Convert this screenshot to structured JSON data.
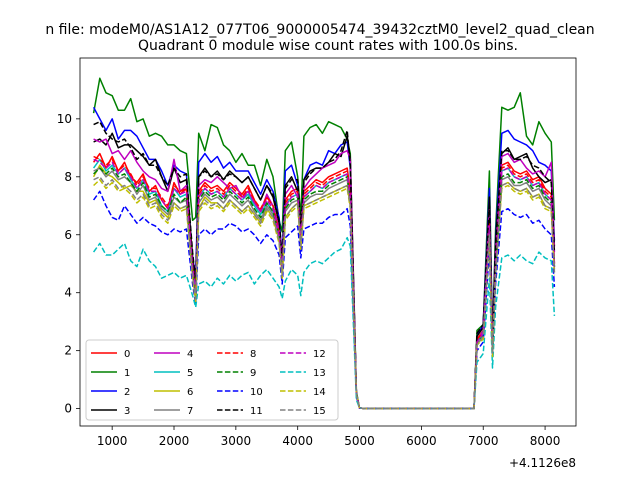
{
  "suptitle": "n file: modeM0/AS1A12_077T06_9000005474_39432cztM0_level2_quad_clean",
  "chart_data": {
    "type": "line",
    "title": "Quadrant 0 module wise count rates with 100.0s bins.",
    "xlabel": "",
    "ylabel": "",
    "offset_text": "+4.1126e8",
    "xlim": [
      480,
      8500
    ],
    "ylim": [
      -0.6,
      12.1
    ],
    "xticks": [
      1000,
      2000,
      3000,
      4000,
      5000,
      6000,
      7000,
      8000
    ],
    "yticks": [
      0,
      2,
      4,
      6,
      8,
      10
    ],
    "legend_position": "lower-left",
    "legend_columns": 4,
    "x": [
      700,
      800,
      900,
      1000,
      1100,
      1200,
      1300,
      1400,
      1500,
      1600,
      1700,
      1800,
      1900,
      2000,
      2100,
      2200,
      2300,
      2350,
      2400,
      2500,
      2600,
      2700,
      2800,
      2900,
      3000,
      3100,
      3200,
      3300,
      3400,
      3500,
      3600,
      3700,
      3750,
      3800,
      3900,
      4000,
      4050,
      4100,
      4200,
      4300,
      4400,
      4500,
      4600,
      4700,
      4800,
      4850,
      4950,
      5000,
      5100,
      6850,
      6900,
      7000,
      7100,
      7150,
      7200,
      7300,
      7400,
      7500,
      7600,
      7700,
      7800,
      7900,
      8000,
      8100,
      8150
    ],
    "series": [
      {
        "name": "0",
        "color": "#ff0000",
        "dash": false,
        "values": [
          8.5,
          8.8,
          8.3,
          8.7,
          8.2,
          8.5,
          8.0,
          7.8,
          8.1,
          7.5,
          7.7,
          7.2,
          6.9,
          7.8,
          7.4,
          7.6,
          5.0,
          4.0,
          7.5,
          7.8,
          7.6,
          7.7,
          7.5,
          7.8,
          7.6,
          7.4,
          7.7,
          7.2,
          6.8,
          7.3,
          7.0,
          6.2,
          5.0,
          7.2,
          7.5,
          7.6,
          6.0,
          7.5,
          7.7,
          7.9,
          7.8,
          8.0,
          8.1,
          8.2,
          8.3,
          7.5,
          0.5,
          0.02,
          0.0,
          0.0,
          2.4,
          2.7,
          6.5,
          2.0,
          5.0,
          8.4,
          8.5,
          8.2,
          8.1,
          8.2,
          7.9,
          8.0,
          7.6,
          7.4,
          5.0
        ]
      },
      {
        "name": "1",
        "color": "#008000",
        "dash": false,
        "values": [
          10.2,
          11.4,
          10.9,
          10.8,
          10.3,
          10.3,
          10.7,
          9.9,
          10.0,
          9.4,
          9.5,
          9.4,
          9.1,
          9.1,
          8.9,
          8.8,
          6.5,
          6.6,
          9.5,
          8.9,
          9.8,
          9.7,
          9.1,
          8.9,
          8.5,
          8.8,
          8.4,
          8.4,
          7.7,
          8.6,
          8.0,
          6.5,
          6.1,
          8.9,
          9.2,
          8.0,
          6.6,
          9.4,
          9.7,
          9.8,
          9.5,
          9.9,
          9.8,
          9.7,
          9.3,
          8.8,
          0.6,
          0.02,
          0.0,
          0.0,
          2.7,
          2.9,
          8.2,
          2.4,
          6.2,
          10.4,
          10.3,
          10.4,
          10.9,
          9.4,
          9.1,
          9.9,
          9.5,
          9.2,
          6.5
        ]
      },
      {
        "name": "2",
        "color": "#0000ff",
        "dash": false,
        "values": [
          10.4,
          10.0,
          9.6,
          10.0,
          9.3,
          9.6,
          9.6,
          9.4,
          9.0,
          8.6,
          8.6,
          8.2,
          7.7,
          8.4,
          8.2,
          8.1,
          5.2,
          4.6,
          8.5,
          8.8,
          8.5,
          8.7,
          8.3,
          8.5,
          8.2,
          8.2,
          8.2,
          7.8,
          7.4,
          7.9,
          7.5,
          6.6,
          5.2,
          8.2,
          8.4,
          7.7,
          6.1,
          7.9,
          8.4,
          8.5,
          8.4,
          8.9,
          8.8,
          9.1,
          9.2,
          8.3,
          0.5,
          0.02,
          0.0,
          0.0,
          2.5,
          2.9,
          7.6,
          2.4,
          5.9,
          9.5,
          9.6,
          9.3,
          9.2,
          9.1,
          8.9,
          8.5,
          8.4,
          8.2,
          5.8
        ]
      },
      {
        "name": "3",
        "color": "#000000",
        "dash": false,
        "values": [
          9.2,
          9.3,
          9.1,
          9.5,
          9.0,
          9.1,
          9.1,
          8.9,
          8.7,
          8.4,
          8.6,
          8.0,
          7.5,
          8.3,
          7.8,
          7.9,
          5.2,
          4.2,
          8.0,
          8.3,
          8.0,
          8.2,
          7.9,
          8.2,
          8.0,
          7.8,
          8.0,
          7.6,
          7.2,
          7.7,
          7.3,
          6.4,
          5.0,
          7.7,
          8.0,
          7.5,
          6.0,
          7.9,
          8.2,
          8.3,
          8.3,
          8.5,
          8.8,
          8.7,
          9.4,
          8.6,
          0.5,
          0.02,
          0.0,
          0.0,
          2.5,
          2.8,
          7.3,
          2.3,
          5.8,
          8.8,
          9.0,
          8.6,
          8.7,
          8.8,
          8.3,
          8.0,
          7.8,
          7.9,
          5.6
        ]
      },
      {
        "name": "4",
        "color": "#bf00bf",
        "dash": false,
        "values": [
          9.3,
          9.2,
          9.3,
          8.8,
          8.9,
          8.6,
          8.9,
          8.5,
          8.2,
          8.0,
          7.9,
          7.6,
          7.5,
          8.6,
          7.5,
          7.7,
          4.6,
          4.0,
          7.7,
          7.9,
          7.8,
          8.0,
          7.8,
          7.6,
          7.7,
          7.3,
          7.5,
          7.1,
          6.8,
          7.4,
          7.0,
          6.2,
          5.2,
          7.4,
          7.7,
          7.3,
          6.1,
          7.6,
          7.9,
          8.1,
          8.3,
          8.4,
          8.5,
          8.8,
          8.9,
          8.6,
          0.5,
          0.02,
          0.0,
          0.0,
          2.3,
          2.7,
          6.9,
          2.1,
          5.4,
          8.7,
          8.8,
          8.5,
          8.6,
          8.3,
          8.1,
          8.2,
          8.0,
          8.5,
          5.4
        ]
      },
      {
        "name": "5",
        "color": "#00bfbf",
        "dash": false,
        "values": [
          8.3,
          8.6,
          8.2,
          8.4,
          8.1,
          8.3,
          7.9,
          7.6,
          7.9,
          7.4,
          7.5,
          7.0,
          6.8,
          7.6,
          7.3,
          7.4,
          4.8,
          3.9,
          7.3,
          7.6,
          7.4,
          7.5,
          7.3,
          7.6,
          7.4,
          7.2,
          7.4,
          7.0,
          6.7,
          7.1,
          6.8,
          6.0,
          4.9,
          7.0,
          7.3,
          7.4,
          5.8,
          7.3,
          7.5,
          7.7,
          7.6,
          7.8,
          7.9,
          8.0,
          8.1,
          7.3,
          0.5,
          0.02,
          0.0,
          0.0,
          2.3,
          2.6,
          6.3,
          2.0,
          4.9,
          8.2,
          8.3,
          8.0,
          7.9,
          8.0,
          7.7,
          7.8,
          7.4,
          7.2,
          4.9
        ]
      },
      {
        "name": "6",
        "color": "#bfbf00",
        "dash": false,
        "values": [
          8.0,
          8.4,
          8.1,
          8.0,
          7.8,
          7.6,
          7.7,
          7.5,
          7.5,
          7.1,
          7.2,
          6.8,
          6.6,
          7.1,
          6.9,
          7.0,
          4.6,
          3.7,
          6.9,
          7.3,
          7.1,
          7.1,
          6.9,
          7.2,
          7.0,
          6.8,
          7.0,
          6.7,
          6.4,
          6.9,
          6.6,
          5.8,
          4.6,
          6.6,
          6.9,
          7.1,
          5.6,
          7.0,
          7.1,
          7.2,
          7.3,
          7.4,
          7.5,
          7.6,
          7.7,
          7.0,
          0.5,
          0.02,
          0.0,
          0.0,
          2.2,
          2.5,
          6.0,
          1.9,
          4.7,
          7.7,
          7.8,
          7.6,
          7.5,
          7.6,
          7.3,
          7.4,
          7.0,
          6.9,
          4.7
        ]
      },
      {
        "name": "7",
        "color": "#808080",
        "dash": false,
        "values": [
          8.2,
          8.3,
          8.0,
          8.2,
          7.9,
          8.0,
          7.8,
          7.4,
          7.7,
          7.2,
          7.3,
          6.9,
          6.7,
          7.3,
          7.1,
          7.2,
          4.7,
          3.8,
          7.1,
          7.4,
          7.2,
          7.3,
          7.1,
          7.4,
          7.2,
          7.0,
          7.2,
          6.8,
          6.5,
          7.0,
          6.7,
          5.9,
          4.7,
          6.8,
          7.1,
          7.2,
          5.7,
          7.1,
          7.3,
          7.4,
          7.4,
          7.6,
          7.7,
          7.8,
          7.9,
          7.1,
          0.5,
          0.02,
          0.0,
          0.0,
          2.2,
          2.5,
          6.1,
          1.9,
          4.8,
          7.9,
          8.0,
          7.7,
          7.7,
          7.8,
          7.5,
          7.6,
          7.2,
          7.0,
          4.8
        ]
      },
      {
        "name": "8",
        "color": "#ff0000",
        "dash": true,
        "values": [
          8.7,
          8.6,
          8.4,
          8.6,
          8.2,
          8.4,
          8.1,
          7.7,
          8.0,
          7.6,
          7.6,
          7.3,
          7.0,
          7.7,
          7.5,
          7.6,
          5.0,
          4.1,
          7.4,
          7.7,
          7.5,
          7.6,
          7.4,
          7.7,
          7.5,
          7.3,
          7.6,
          7.2,
          6.9,
          7.3,
          7.0,
          6.1,
          4.9,
          7.1,
          7.4,
          7.5,
          6.0,
          7.4,
          7.6,
          7.8,
          7.7,
          7.9,
          8.0,
          8.1,
          8.2,
          7.4,
          0.5,
          0.02,
          0.0,
          0.0,
          2.4,
          2.6,
          6.4,
          2.0,
          5.0,
          8.3,
          8.4,
          8.1,
          8.0,
          8.1,
          7.8,
          7.9,
          7.5,
          7.3,
          5.0
        ]
      },
      {
        "name": "9",
        "color": "#008000",
        "dash": true,
        "values": [
          8.1,
          8.3,
          8.1,
          8.3,
          8.0,
          8.1,
          7.8,
          7.5,
          7.8,
          7.3,
          7.4,
          7.0,
          6.8,
          7.4,
          7.1,
          7.3,
          4.8,
          3.9,
          7.2,
          7.5,
          7.3,
          7.4,
          7.2,
          7.5,
          7.3,
          7.1,
          7.3,
          6.9,
          6.6,
          7.1,
          6.8,
          6.0,
          4.8,
          6.9,
          7.2,
          7.3,
          5.8,
          7.2,
          7.4,
          7.5,
          7.5,
          7.7,
          7.8,
          7.9,
          8.0,
          7.2,
          0.5,
          0.02,
          0.0,
          0.0,
          2.3,
          2.5,
          6.2,
          1.9,
          4.9,
          8.0,
          8.1,
          7.8,
          7.8,
          7.9,
          7.6,
          7.7,
          7.3,
          7.1,
          4.9
        ]
      },
      {
        "name": "10",
        "color": "#0000ff",
        "dash": true,
        "values": [
          7.2,
          7.5,
          7.0,
          6.6,
          6.5,
          7.0,
          6.7,
          6.4,
          6.6,
          6.4,
          6.3,
          6.1,
          6.0,
          6.2,
          6.1,
          6.2,
          4.3,
          3.6,
          6.0,
          6.2,
          6.0,
          6.2,
          6.2,
          6.4,
          6.3,
          6.1,
          6.2,
          6.0,
          5.7,
          6.0,
          5.8,
          5.3,
          4.3,
          5.9,
          6.1,
          6.3,
          5.2,
          6.2,
          6.3,
          6.4,
          6.4,
          6.6,
          6.7,
          6.7,
          6.9,
          6.3,
          0.4,
          0.02,
          0.0,
          0.0,
          2.0,
          2.3,
          5.5,
          1.8,
          4.3,
          6.8,
          6.9,
          6.7,
          6.6,
          6.7,
          6.4,
          6.5,
          6.2,
          6.0,
          4.2
        ]
      },
      {
        "name": "11",
        "color": "#000000",
        "dash": true,
        "values": [
          9.8,
          9.9,
          9.5,
          9.3,
          9.2,
          9.3,
          9.0,
          8.6,
          8.8,
          8.4,
          8.4,
          8.0,
          7.7,
          8.3,
          8.0,
          8.1,
          5.4,
          4.4,
          8.0,
          8.2,
          8.0,
          8.1,
          7.9,
          8.1,
          8.0,
          7.8,
          8.0,
          7.6,
          7.2,
          7.7,
          7.4,
          6.5,
          5.2,
          7.6,
          7.9,
          7.9,
          6.3,
          7.8,
          8.1,
          8.3,
          8.3,
          8.5,
          8.6,
          8.9,
          9.6,
          8.4,
          0.5,
          0.02,
          0.0,
          0.0,
          2.6,
          2.9,
          7.0,
          2.2,
          5.6,
          8.9,
          8.9,
          8.6,
          8.6,
          8.7,
          8.4,
          8.3,
          8.0,
          7.8,
          5.4
        ]
      },
      {
        "name": "12",
        "color": "#bf00bf",
        "dash": true,
        "values": [
          8.6,
          8.5,
          8.3,
          8.5,
          8.1,
          8.3,
          8.0,
          7.6,
          7.9,
          7.5,
          7.5,
          7.2,
          6.9,
          7.6,
          7.4,
          7.5,
          4.9,
          4.0,
          7.3,
          7.6,
          7.4,
          7.5,
          7.3,
          7.6,
          7.4,
          7.2,
          7.5,
          7.1,
          6.8,
          7.2,
          6.9,
          6.0,
          4.8,
          7.0,
          7.3,
          7.4,
          5.9,
          7.3,
          7.5,
          7.7,
          7.6,
          7.8,
          7.9,
          8.0,
          8.1,
          7.3,
          0.5,
          0.02,
          0.0,
          0.0,
          2.3,
          2.6,
          6.3,
          2.0,
          4.9,
          8.2,
          8.3,
          8.0,
          7.9,
          8.0,
          7.7,
          7.8,
          7.4,
          7.2,
          4.9
        ]
      },
      {
        "name": "13",
        "color": "#00bfbf",
        "dash": true,
        "values": [
          5.4,
          5.7,
          5.3,
          5.3,
          5.5,
          5.7,
          5.1,
          4.9,
          5.5,
          5.1,
          4.9,
          4.5,
          4.6,
          4.7,
          4.5,
          4.6,
          3.9,
          3.5,
          4.3,
          4.4,
          4.2,
          4.5,
          4.3,
          4.6,
          4.4,
          4.6,
          4.7,
          4.3,
          4.6,
          4.8,
          4.5,
          4.2,
          3.8,
          4.4,
          4.8,
          4.6,
          3.9,
          4.7,
          5.0,
          5.1,
          5.0,
          5.2,
          5.4,
          5.5,
          5.9,
          5.6,
          0.3,
          0.02,
          0.0,
          0.0,
          1.6,
          1.9,
          4.5,
          1.4,
          3.5,
          5.2,
          5.3,
          5.1,
          5.3,
          5.1,
          5.0,
          5.4,
          5.2,
          5.1,
          3.2
        ]
      },
      {
        "name": "14",
        "color": "#bfbf00",
        "dash": true,
        "values": [
          7.7,
          7.9,
          7.6,
          7.8,
          7.5,
          7.6,
          7.4,
          7.1,
          7.3,
          6.9,
          7.0,
          6.6,
          6.4,
          7.0,
          6.8,
          6.9,
          4.5,
          3.7,
          6.8,
          7.1,
          6.9,
          7.0,
          6.8,
          7.1,
          6.9,
          6.7,
          6.9,
          6.6,
          6.3,
          6.8,
          6.5,
          5.7,
          4.5,
          6.5,
          6.8,
          7.0,
          5.5,
          6.9,
          7.0,
          7.1,
          7.2,
          7.3,
          7.4,
          7.5,
          7.6,
          6.9,
          0.5,
          0.02,
          0.0,
          0.0,
          2.2,
          2.4,
          5.9,
          1.8,
          4.6,
          7.6,
          7.7,
          7.5,
          7.4,
          7.5,
          7.2,
          7.3,
          6.9,
          6.8,
          4.6
        ]
      },
      {
        "name": "15",
        "color": "#808080",
        "dash": true,
        "values": [
          7.9,
          8.0,
          7.7,
          7.9,
          7.6,
          7.7,
          7.5,
          7.2,
          7.4,
          7.0,
          7.1,
          6.7,
          6.5,
          7.1,
          6.9,
          7.0,
          4.6,
          3.8,
          6.9,
          7.2,
          7.0,
          7.1,
          6.9,
          7.2,
          7.0,
          6.8,
          7.0,
          6.7,
          6.4,
          6.9,
          6.6,
          5.8,
          4.6,
          6.6,
          6.9,
          7.1,
          5.6,
          7.0,
          7.1,
          7.2,
          7.3,
          7.4,
          7.5,
          7.6,
          7.7,
          7.0,
          0.5,
          0.02,
          0.0,
          0.0,
          2.2,
          2.5,
          6.0,
          1.9,
          4.7,
          7.7,
          7.8,
          7.6,
          7.5,
          7.6,
          7.3,
          7.4,
          7.0,
          6.9,
          4.7
        ]
      }
    ]
  }
}
